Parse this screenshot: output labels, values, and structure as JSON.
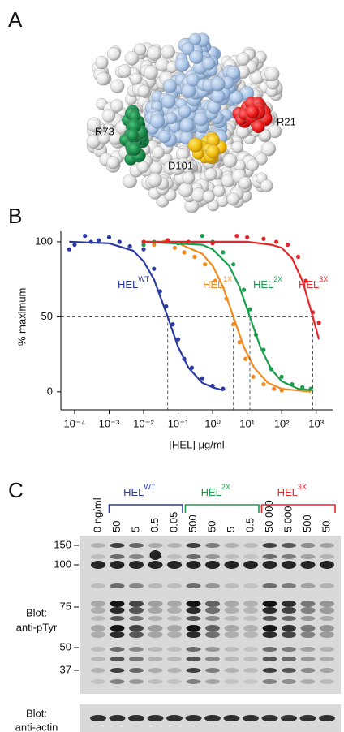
{
  "panel_a": {
    "label": "A",
    "residues": [
      "R73",
      "D101",
      "R21"
    ]
  },
  "chart_data": {
    "type": "scatter",
    "panel_label": "B",
    "x_label": "[HEL] μg/ml",
    "y_label": "% maximum",
    "log_x": true,
    "xlim": [
      4e-05,
      3000
    ],
    "ylim": [
      -12,
      107
    ],
    "xticks": [
      {
        "value": 0.0001,
        "label": "10⁻⁴"
      },
      {
        "value": 0.001,
        "label": "10⁻³"
      },
      {
        "value": 0.01,
        "label": "10⁻²"
      },
      {
        "value": 0.1,
        "label": "10⁻¹"
      },
      {
        "value": 1,
        "label": "10⁰"
      },
      {
        "value": 10,
        "label": "10¹"
      },
      {
        "value": 100,
        "label": "10²"
      },
      {
        "value": 1000,
        "label": "10³"
      }
    ],
    "yticks": [
      0,
      50,
      100
    ],
    "reference_y": 50,
    "series": [
      {
        "name": "HEL",
        "name_sup": "WT",
        "color": "#2a3aa0",
        "ec50": 0.05,
        "x": [
          7e-05,
          0.0001,
          0.0002,
          0.0003,
          0.0005,
          0.001,
          0.002,
          0.004,
          0.01,
          0.02,
          0.03,
          0.045,
          0.07,
          0.1,
          0.15,
          0.25,
          0.5,
          1,
          2
        ],
        "values": [
          95,
          98,
          104,
          100,
          101,
          103,
          100,
          97,
          95,
          82,
          67,
          57,
          45,
          35,
          22,
          16,
          9,
          4,
          2
        ],
        "fit_x": [
          7e-05,
          0.001,
          0.005,
          0.01,
          0.02,
          0.05,
          0.1,
          0.2,
          0.5,
          1,
          2
        ],
        "fit_values": [
          100,
          99,
          94,
          87,
          75,
          50,
          30,
          16,
          6,
          3,
          1
        ]
      },
      {
        "name": "HEL",
        "name_sup": "1X",
        "color": "#f28a1e",
        "ec50": 4,
        "x": [
          0.01,
          0.02,
          0.04,
          0.08,
          0.15,
          0.3,
          0.6,
          1.2,
          2.5,
          4,
          6,
          9,
          15,
          30,
          60,
          100
        ],
        "values": [
          100,
          98,
          100,
          96,
          93,
          90,
          85,
          74,
          62,
          45,
          33,
          22,
          10,
          5,
          2,
          1
        ],
        "fit_x": [
          0.01,
          0.1,
          0.5,
          1,
          2,
          4,
          8,
          16,
          40,
          100,
          700
        ],
        "fit_values": [
          100,
          99,
          92,
          84,
          70,
          50,
          30,
          16,
          6,
          2,
          0
        ]
      },
      {
        "name": "HEL",
        "name_sup": "2X",
        "color": "#1a9e4c",
        "ec50": 12,
        "x": [
          0.01,
          0.02,
          0.05,
          0.1,
          0.5,
          1,
          2,
          4,
          8,
          12,
          18,
          30,
          50,
          100,
          200,
          400,
          700
        ],
        "values": [
          98,
          100,
          101,
          99,
          104,
          100,
          93,
          85,
          68,
          55,
          38,
          28,
          15,
          10,
          5,
          3,
          2
        ],
        "fit_x": [
          0.01,
          0.5,
          1,
          3,
          6,
          12,
          24,
          50,
          100,
          300,
          800
        ],
        "fit_values": [
          100,
          98,
          95,
          84,
          70,
          50,
          30,
          15,
          7,
          2,
          1
        ]
      },
      {
        "name": "HEL",
        "name_sup": "3X",
        "color": "#e8262a",
        "ec50": 800,
        "x": [
          0.01,
          0.05,
          0.2,
          1,
          5,
          10,
          30,
          70,
          150,
          300,
          500,
          800,
          1200
        ],
        "values": [
          100,
          101,
          100,
          99,
          104,
          103,
          102,
          100,
          98,
          90,
          74,
          53,
          46
        ],
        "fit_x": [
          0.01,
          10,
          50,
          100,
          200,
          400,
          800,
          1200
        ],
        "fit_values": [
          100,
          100,
          98,
          96,
          89,
          74,
          50,
          35
        ]
      }
    ]
  },
  "panel_c": {
    "label": "C",
    "groups": [
      {
        "name": "HEL",
        "sup": "WT",
        "color": "#2a3aa0"
      },
      {
        "name": "HEL",
        "sup": "2X",
        "color": "#1a9e4c"
      },
      {
        "name": "HEL",
        "sup": "3X",
        "color": "#e8262a"
      }
    ],
    "lanes": [
      {
        "label": "0 ng/ml",
        "color": "#000000"
      },
      {
        "label": "50",
        "color": "#2a3aa0"
      },
      {
        "label": "5",
        "color": "#2a3aa0"
      },
      {
        "label": "0.5",
        "color": "#2a3aa0"
      },
      {
        "label": "0.05",
        "color": "#2a3aa0"
      },
      {
        "label": "500",
        "color": "#1a9e4c"
      },
      {
        "label": "50",
        "color": "#1a9e4c"
      },
      {
        "label": "5",
        "color": "#1a9e4c"
      },
      {
        "label": "0.5",
        "color": "#1a9e4c"
      },
      {
        "label": "50 000",
        "color": "#e8262a"
      },
      {
        "label": "5 000",
        "color": "#e8262a"
      },
      {
        "label": "500",
        "color": "#e8262a"
      },
      {
        "label": "50",
        "color": "#e8262a"
      }
    ],
    "markers": [
      "150",
      "100",
      "75",
      "50",
      "37"
    ],
    "blots": [
      {
        "line1": "Blot:",
        "line2": "anti-pTyr"
      },
      {
        "line1": "Blot:",
        "line2": "anti-actin"
      }
    ]
  }
}
